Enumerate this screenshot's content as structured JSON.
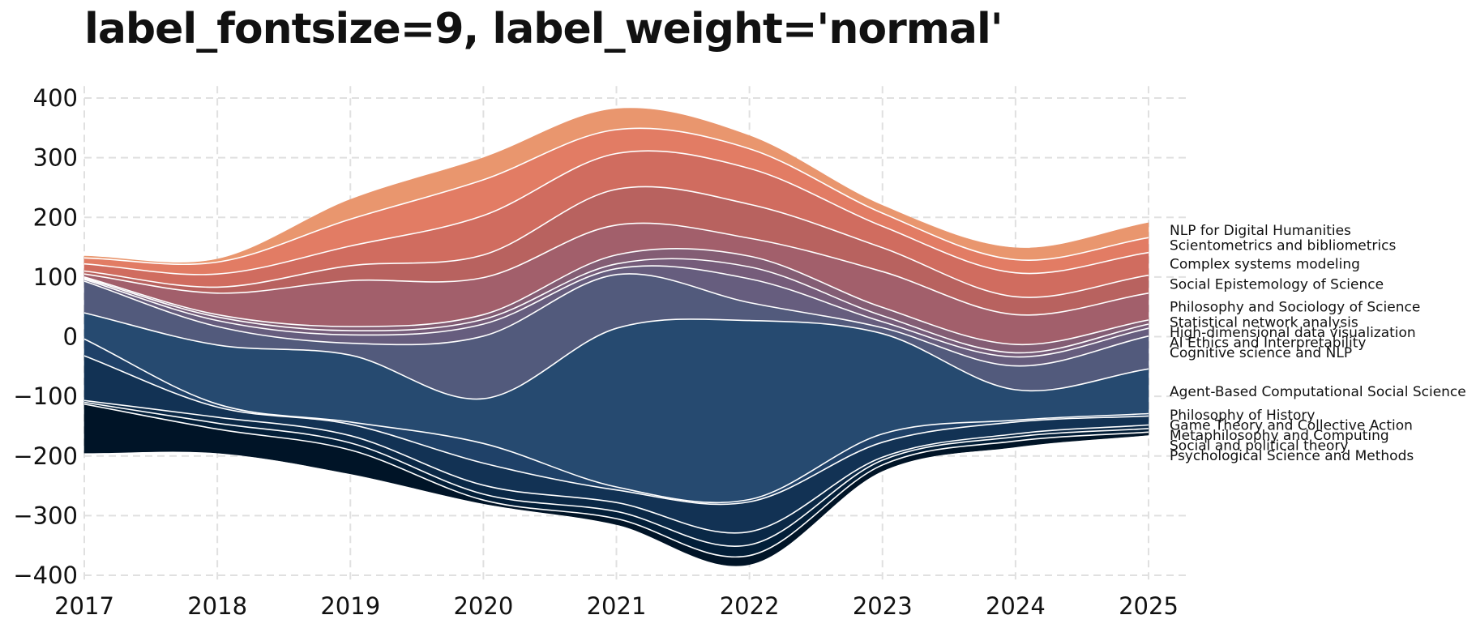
{
  "chart_data": {
    "type": "area",
    "title": "label_fontsize=9, label_weight='normal'",
    "xlabel": "",
    "ylabel": "",
    "x": [
      2017,
      2018,
      2019,
      2020,
      2021,
      2022,
      2023,
      2024,
      2025
    ],
    "xlim": [
      2017,
      2025.3
    ],
    "ylim": [
      -410,
      420
    ],
    "yticks": [
      400,
      300,
      200,
      100,
      0,
      -100,
      -200,
      -300,
      -400
    ],
    "grid": true,
    "colors": {
      "background": "#ffffff",
      "grid": "#e0e0e0",
      "separator": "#ffffff"
    },
    "baseline": [
      -195,
      -195,
      -230,
      -280,
      -315,
      -382,
      -225,
      -185,
      -165
    ],
    "series": [
      {
        "name": "Psychological Science and Methods",
        "values": [
          82,
          40,
          40,
          6,
          10,
          15,
          10,
          10,
          5
        ],
        "color": "#001427"
      },
      {
        "name": "Social and political theory",
        "values": [
          3,
          10,
          12,
          10,
          12,
          18,
          8,
          7,
          6
        ],
        "color": "#021e38"
      },
      {
        "name": "Metaphilosophy and Computing",
        "values": [
          3,
          10,
          12,
          15,
          15,
          22,
          5,
          5,
          6
        ],
        "color": "#0a2846"
      },
      {
        "name": "Game Theory and Collective Action",
        "values": [
          75,
          17,
          19,
          37,
          21,
          50,
          25,
          20,
          15
        ],
        "color": "#123254"
      },
      {
        "name": "Philosophy of History",
        "values": [
          28,
          5,
          4,
          33,
          5,
          4,
          14,
          3,
          4
        ],
        "color": "#1f4168"
      },
      {
        "name": "Agent-Based Computational Social Science",
        "values": [
          44,
          99,
          112,
          75,
          266,
          300,
          168,
          51,
          75
        ],
        "color": "#264a70"
      },
      {
        "name": "Cognitive science and NLP",
        "values": [
          53,
          31,
          20,
          105,
          90,
          30,
          10,
          40,
          55
        ],
        "color": "#525a7c"
      },
      {
        "name": "AI Ethics and Interpretability",
        "values": [
          3,
          10,
          14,
          20,
          10,
          40,
          10,
          15,
          13
        ],
        "color": "#665d7e"
      },
      {
        "name": "High-dimensional data visualization",
        "values": [
          2,
          6,
          7,
          8,
          8,
          20,
          10,
          7,
          7
        ],
        "color": "#755c7a"
      },
      {
        "name": "Statistical network analysis",
        "values": [
          2,
          4,
          7,
          8,
          15,
          18,
          14,
          14,
          7
        ],
        "color": "#835d74"
      },
      {
        "name": "Philosophy and Sociology of Science",
        "values": [
          5,
          36,
          77,
          62,
          50,
          30,
          60,
          50,
          45
        ],
        "color": "#a25f6b"
      },
      {
        "name": "Social Epistemology of Science",
        "values": [
          5,
          10,
          25,
          38,
          60,
          57,
          40,
          30,
          30
        ],
        "color": "#b8625f"
      },
      {
        "name": "Complex systems modeling",
        "values": [
          12,
          22,
          33,
          66,
          60,
          60,
          36,
          40,
          38
        ],
        "color": "#d06c5f"
      },
      {
        "name": "Scientometrics and bibliometrics",
        "values": [
          10,
          20,
          45,
          60,
          40,
          33,
          22,
          22,
          25
        ],
        "color": "#e27c64"
      },
      {
        "name": "NLP for Digital Humanities",
        "values": [
          3,
          5,
          33,
          37,
          35,
          22,
          13,
          20,
          25
        ],
        "color": "#e9966e"
      }
    ]
  }
}
